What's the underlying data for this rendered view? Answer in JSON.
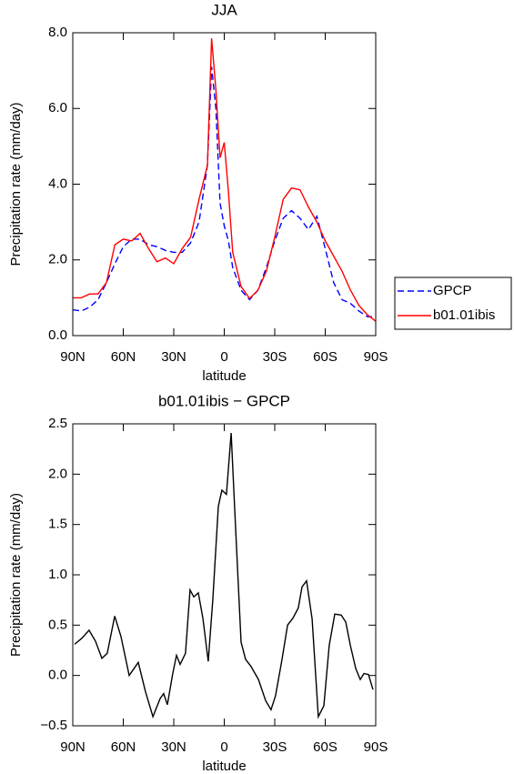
{
  "chart_data": [
    {
      "type": "line",
      "title": "JJA",
      "xlabel": "latitude",
      "ylabel": "Precipitation rate (mm/day)",
      "x": [
        90,
        85,
        80,
        75,
        70,
        65,
        60,
        55,
        50,
        45,
        40,
        35,
        30,
        25,
        20,
        15,
        10,
        7.5,
        5,
        2.5,
        0,
        -2.5,
        -5,
        -10,
        -15,
        -20,
        -25,
        -30,
        -35,
        -40,
        -45,
        -50,
        -55,
        -60,
        -65,
        -70,
        -75,
        -80,
        -85,
        -90
      ],
      "series": [
        {
          "name": "GPCP",
          "color": "#0000ff",
          "line_style": "dashed",
          "values": [
            0.68,
            0.65,
            0.75,
            0.95,
            1.4,
            1.9,
            2.35,
            2.55,
            2.55,
            2.4,
            2.35,
            2.25,
            2.2,
            2.2,
            2.45,
            3.0,
            4.5,
            7.1,
            6.0,
            3.5,
            2.9,
            2.5,
            1.8,
            1.2,
            0.95,
            1.2,
            1.8,
            2.5,
            3.1,
            3.3,
            3.1,
            2.8,
            3.15,
            2.3,
            1.4,
            0.95,
            0.85,
            0.65,
            0.5,
            0.5
          ]
        },
        {
          "name": "b01.01ibis",
          "color": "#ff0000",
          "line_style": "solid",
          "values": [
            1.0,
            1.0,
            1.1,
            1.1,
            1.4,
            2.4,
            2.55,
            2.5,
            2.7,
            2.3,
            1.95,
            2.05,
            1.9,
            2.3,
            2.6,
            3.6,
            4.5,
            7.85,
            6.5,
            4.7,
            5.1,
            3.8,
            2.2,
            1.3,
            0.98,
            1.2,
            1.7,
            2.6,
            3.6,
            3.9,
            3.85,
            3.4,
            3.0,
            2.5,
            2.1,
            1.7,
            1.2,
            0.8,
            0.55,
            0.38
          ]
        }
      ],
      "xlim": [
        90,
        -90
      ],
      "xticks": [
        {
          "value": 90,
          "label": "90N"
        },
        {
          "value": 60,
          "label": "60N"
        },
        {
          "value": 30,
          "label": "30N"
        },
        {
          "value": 0,
          "label": "0"
        },
        {
          "value": -30,
          "label": "30S"
        },
        {
          "value": -60,
          "label": "60S"
        },
        {
          "value": -90,
          "label": "90S"
        }
      ],
      "ylim": [
        0,
        8
      ],
      "yticks": [
        {
          "value": 0,
          "label": "0.0"
        },
        {
          "value": 2,
          "label": "2.0"
        },
        {
          "value": 4,
          "label": "4.0"
        },
        {
          "value": 6,
          "label": "6.0"
        },
        {
          "value": 8,
          "label": "8.0"
        }
      ],
      "legend": "right"
    },
    {
      "type": "line",
      "title": "b01.01ibis − GPCP",
      "xlabel": "latitude",
      "ylabel": "Precipitation rate (mm/day)",
      "x": [
        88.9,
        84.6,
        80.3,
        76.5,
        72.7,
        69.5,
        65.1,
        61.4,
        56.5,
        51.1,
        46.8,
        42.4,
        38.1,
        36.0,
        33.8,
        30.6,
        28.4,
        26.2,
        23.0,
        20.3,
        18.1,
        15.4,
        12.7,
        9.5,
        6.8,
        3.5,
        1.4,
        -1.3,
        -4.1,
        -6.2,
        -10.0,
        -12.7,
        -15.9,
        -20.3,
        -24.6,
        -27.8,
        -30.5,
        -34.3,
        -37.6,
        -40.8,
        -44.0,
        -46.2,
        -48.9,
        -52.2,
        -55.9,
        -59.2,
        -62.4,
        -65.7,
        -69.5,
        -72.2,
        -74.9,
        -78.1,
        -80.8,
        -83.0,
        -85.7,
        -88.4
      ],
      "values": [
        0.31,
        0.37,
        0.45,
        0.34,
        0.17,
        0.22,
        0.59,
        0.39,
        0.0,
        0.13,
        -0.16,
        -0.41,
        -0.23,
        -0.18,
        -0.29,
        0.02,
        0.2,
        0.11,
        0.22,
        0.85,
        0.78,
        0.82,
        0.57,
        0.14,
        0.75,
        1.68,
        1.84,
        1.8,
        2.41,
        1.65,
        0.33,
        0.16,
        0.09,
        -0.04,
        -0.25,
        -0.34,
        -0.2,
        0.16,
        0.5,
        0.57,
        0.67,
        0.88,
        0.94,
        0.56,
        -0.41,
        -0.3,
        0.3,
        0.61,
        0.6,
        0.53,
        0.3,
        0.07,
        -0.04,
        0.02,
        0.01,
        -0.14
      ],
      "color": "#000000",
      "xlim": [
        90,
        -90
      ],
      "xticks": [
        {
          "value": 90,
          "label": "90N"
        },
        {
          "value": 60,
          "label": "60N"
        },
        {
          "value": 30,
          "label": "30N"
        },
        {
          "value": 0,
          "label": "0"
        },
        {
          "value": -30,
          "label": "30S"
        },
        {
          "value": -60,
          "label": "60S"
        },
        {
          "value": -90,
          "label": "90S"
        }
      ],
      "ylim": [
        -0.5,
        2.5
      ],
      "yticks": [
        {
          "value": -0.5,
          "label": "−0.5"
        },
        {
          "value": 0,
          "label": "0.0"
        },
        {
          "value": 0.5,
          "label": "0.5"
        },
        {
          "value": 1,
          "label": "1.0"
        },
        {
          "value": 1.5,
          "label": "1.5"
        },
        {
          "value": 2,
          "label": "2.0"
        },
        {
          "value": 2.5,
          "label": "2.5"
        }
      ]
    }
  ]
}
